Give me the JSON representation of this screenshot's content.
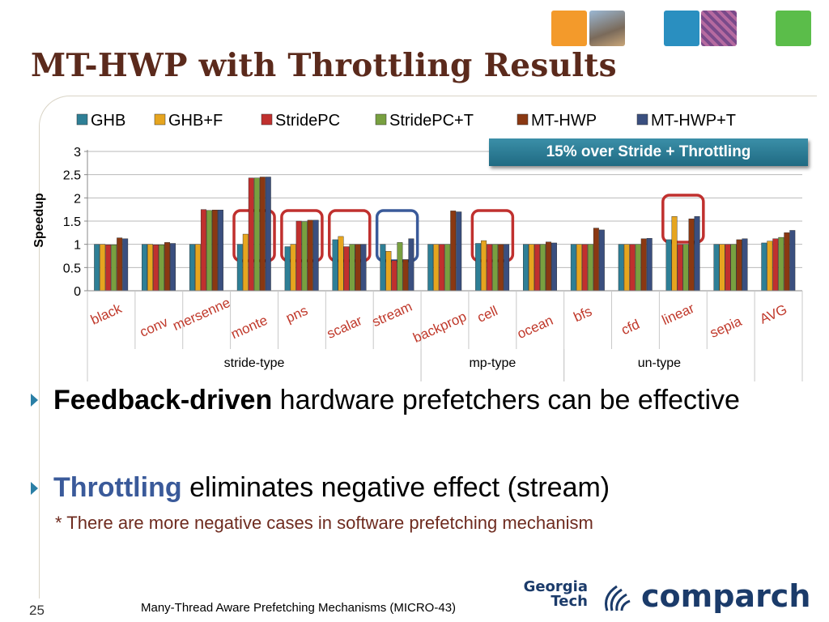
{
  "slide": {
    "title": "MT-HWP with Throttling Results",
    "page_number": "25",
    "footer": "Many-Thread Aware Prefetching Mechanisms (MICRO-43)",
    "logo_gt": "Georgia Tech",
    "logo_comparch": "comparch"
  },
  "callout": "15% over Stride + Throttling",
  "bullets": [
    {
      "strong": "Feedback-driven",
      "rest": " hardware prefetchers can be effective"
    },
    {
      "strong": "Throttling",
      "rest": " eliminates negative effect (stream)"
    }
  ],
  "note": "* There are more negative cases in software prefetching mechanism",
  "colors": {
    "GHB": "#2e7f96",
    "GHB+F": "#e6a51f",
    "StridePC": "#c0302e",
    "StridePC+T": "#78a040",
    "MT-HWP": "#8a3812",
    "MT-HWP+T": "#3a4f7f",
    "title": "#5b2a1c",
    "highlight_red": "#c0302e",
    "highlight_blue": "#3a5a9a"
  },
  "chart_data": {
    "type": "bar",
    "ylabel": "Speedup",
    "ylim": [
      0,
      3
    ],
    "yticks": [
      "0",
      "0.5",
      "1",
      "1.5",
      "2",
      "2.5",
      "3"
    ],
    "grid": true,
    "legend_position": "top",
    "categories": [
      "black",
      "conv",
      "mersenne",
      "monte",
      "pns",
      "scalar",
      "stream",
      "backprop",
      "cell",
      "ocean",
      "bfs",
      "cfd",
      "linear",
      "sepia",
      "AVG"
    ],
    "groups": [
      {
        "label": "stride-type",
        "categories": [
          "black",
          "conv",
          "mersenne",
          "monte",
          "pns",
          "scalar",
          "stream"
        ]
      },
      {
        "label": "mp-type",
        "categories": [
          "backprop",
          "cell",
          "ocean"
        ]
      },
      {
        "label": "un-type",
        "categories": [
          "bfs",
          "cfd",
          "linear",
          "sepia"
        ]
      }
    ],
    "series": [
      {
        "name": "GHB",
        "values": [
          1.0,
          1.0,
          1.0,
          1.0,
          0.95,
          1.1,
          1.0,
          1.0,
          1.02,
          1.0,
          1.0,
          1.0,
          1.1,
          1.0,
          1.03
        ]
      },
      {
        "name": "GHB+F",
        "values": [
          1.0,
          1.0,
          1.0,
          1.22,
          1.0,
          1.17,
          0.85,
          1.0,
          1.08,
          1.0,
          1.0,
          1.0,
          1.6,
          1.0,
          1.07
        ]
      },
      {
        "name": "StridePC",
        "values": [
          0.99,
          0.99,
          1.75,
          2.43,
          1.5,
          0.95,
          0.65,
          1.0,
          1.0,
          1.0,
          1.0,
          1.0,
          1.0,
          1.0,
          1.12
        ]
      },
      {
        "name": "StridePC+T",
        "values": [
          0.99,
          0.99,
          1.73,
          2.43,
          1.49,
          1.0,
          1.04,
          1.0,
          1.0,
          1.0,
          1.0,
          1.0,
          1.0,
          1.0,
          1.15
        ]
      },
      {
        "name": "MT-HWP",
        "values": [
          1.14,
          1.04,
          1.74,
          2.45,
          1.52,
          1.0,
          0.67,
          1.72,
          1.0,
          1.05,
          1.35,
          1.12,
          1.55,
          1.1,
          1.25
        ]
      },
      {
        "name": "MT-HWP+T",
        "values": [
          1.12,
          1.02,
          1.74,
          2.45,
          1.52,
          1.0,
          1.12,
          1.7,
          1.0,
          1.03,
          1.31,
          1.13,
          1.6,
          1.12,
          1.3
        ]
      }
    ],
    "highlights": [
      {
        "category": "monte",
        "color": "red"
      },
      {
        "category": "pns",
        "color": "red"
      },
      {
        "category": "scalar",
        "color": "red"
      },
      {
        "category": "stream",
        "color": "blue"
      },
      {
        "category": "cell",
        "color": "red"
      },
      {
        "category": "linear",
        "color": "red"
      }
    ]
  }
}
